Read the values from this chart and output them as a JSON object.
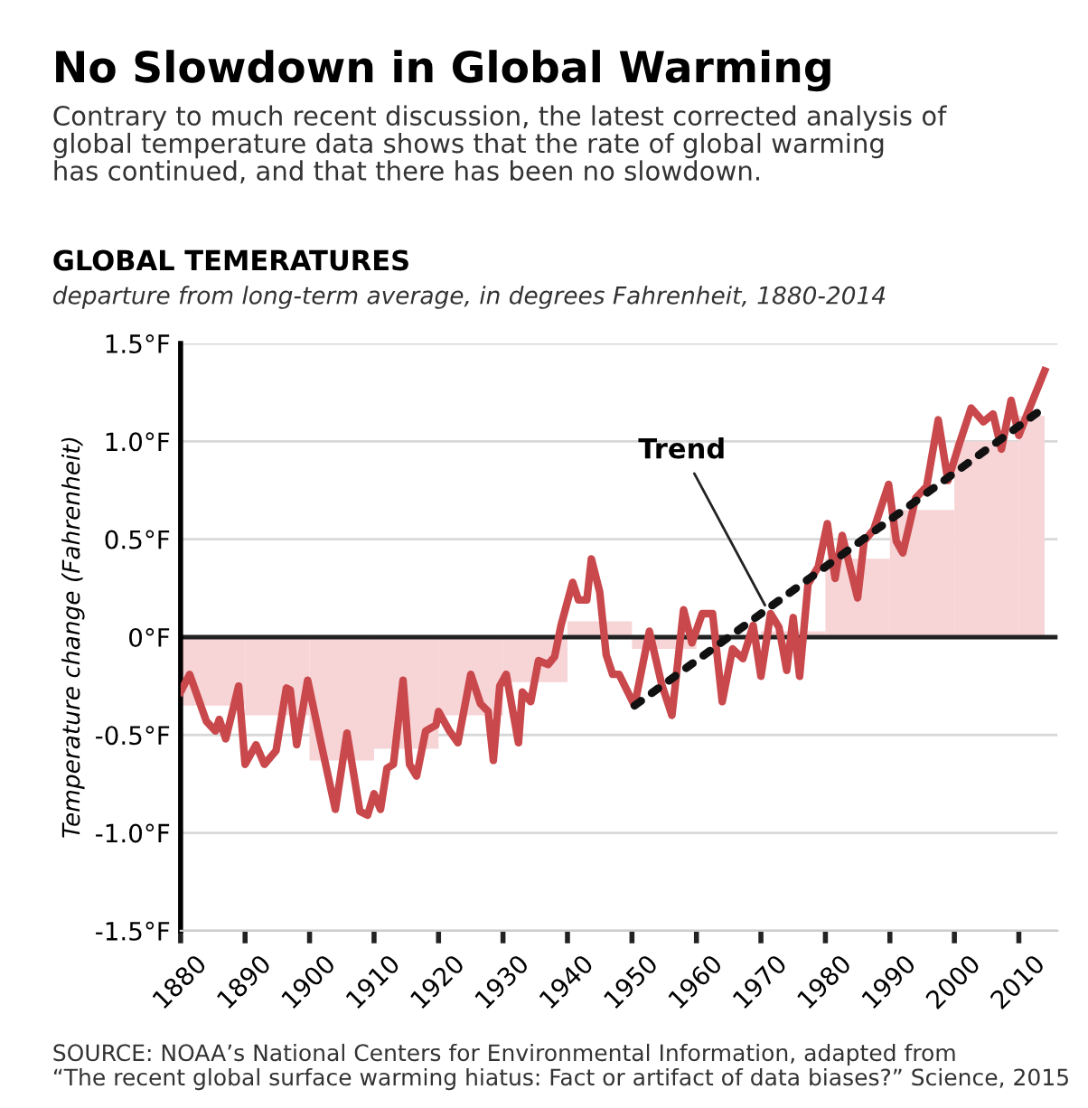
{
  "chart_data": {
    "type": "line",
    "title": "No Slowdown in Global Warming",
    "subtitle": "Contrary to much recent discussion, the latest corrected analysis of\nglobal temperature data shows that the rate of global warming\nhas continued, and that there has been no slowdown.",
    "ylabel": "Temperature change (Fahrenheit)",
    "annotations": [
      "GLOBAL TEMERATURES",
      "departure from long-term average, in degrees Fahrenheit, 1880-2014",
      "SOURCE: NOAA’s National Centers for Environmental Information, adapted from\n“The recent global surface warming hiatus: Fact or artifact of data biases?” Science, 2015",
      {
        "text": "Trend",
        "x": 1971,
        "y": 0.14
      }
    ],
    "xlim": [
      1880,
      2016
    ],
    "xticks": [
      1880,
      1890,
      1900,
      1910,
      1920,
      1930,
      1940,
      1950,
      1960,
      1970,
      1980,
      1990,
      2000,
      2010
    ],
    "ylim": [
      -1.5,
      1.5
    ],
    "yticks": [
      {
        "value": 1.5,
        "label": "1.5°F"
      },
      {
        "value": 1.0,
        "label": "1.0°F"
      },
      {
        "value": 0.5,
        "label": "0.5°F"
      },
      {
        "value": 0,
        "label": "0°F"
      },
      {
        "value": -0.5,
        "label": "-0.5°F"
      },
      {
        "value": -1.0,
        "label": "-1.0°F"
      },
      {
        "value": -1.5,
        "label": "-1.5°F"
      }
    ],
    "grid": "y",
    "legend": false,
    "ref_lines": [
      {
        "axis": "y",
        "value": 0,
        "color": "#222222"
      }
    ],
    "series": [
      {
        "type": "bar",
        "color": "#f7d4d6",
        "x": [
          1885,
          1895,
          1905,
          1915,
          1925,
          1935,
          1945,
          1955,
          1965,
          1975,
          1985,
          1995,
          2005,
          2012
        ],
        "values": [
          -0.35,
          -0.4,
          -0.63,
          -0.57,
          -0.4,
          -0.23,
          0.08,
          -0.06,
          0.0,
          0.03,
          0.4,
          0.65,
          1.0,
          1.13
        ]
      },
      {
        "color": "#c9484c",
        "line_style": "solid",
        "x": [
          1880,
          1881.4,
          1884,
          1885.4,
          1886,
          1887,
          1889,
          1890,
          1891.7,
          1893,
          1894.8,
          1896.4,
          1897,
          1898,
          1899.7,
          1901.5,
          1904,
          1905.8,
          1907.8,
          1909,
          1910,
          1911,
          1912,
          1913,
          1914.5,
          1915.5,
          1916.6,
          1918,
          1919.6,
          1920,
          1921.7,
          1923,
          1925,
          1926.5,
          1927.7,
          1928.5,
          1929.5,
          1930.5,
          1932.4,
          1933,
          1934.3,
          1935.5,
          1937,
          1938,
          1939,
          1940.8,
          1941.7,
          1943,
          1943.7,
          1945,
          1946,
          1947,
          1948,
          1950.4,
          1952.7,
          1954.6,
          1956.2,
          1958,
          1959.3,
          1960.9,
          1962.5,
          1964,
          1965.6,
          1967.2,
          1968.8,
          1970,
          1971.5,
          1972.8,
          1974,
          1975,
          1976,
          1977.3,
          1978.9,
          1980.3,
          1981.5,
          1982.6,
          1985,
          1986,
          1987.5,
          1989.8,
          1991,
          1992,
          1994,
          1995.7,
          1997.5,
          1999,
          2000.8,
          2002.6,
          2004.5,
          2006,
          2007.3,
          2008.8,
          2010,
          2011.3,
          2014
        ],
        "values": [
          -0.28,
          -0.19,
          -0.43,
          -0.48,
          -0.42,
          -0.52,
          -0.25,
          -0.65,
          -0.55,
          -0.65,
          -0.58,
          -0.26,
          -0.27,
          -0.55,
          -0.22,
          -0.5,
          -0.88,
          -0.49,
          -0.89,
          -0.91,
          -0.8,
          -0.88,
          -0.67,
          -0.65,
          -0.22,
          -0.65,
          -0.71,
          -0.48,
          -0.45,
          -0.38,
          -0.48,
          -0.54,
          -0.19,
          -0.34,
          -0.38,
          -0.63,
          -0.25,
          -0.19,
          -0.54,
          -0.28,
          -0.33,
          -0.12,
          -0.14,
          -0.1,
          0.06,
          0.28,
          0.19,
          0.19,
          0.4,
          0.23,
          -0.09,
          -0.19,
          -0.19,
          -0.35,
          0.03,
          -0.24,
          -0.4,
          0.14,
          -0.03,
          0.12,
          0.12,
          -0.33,
          -0.06,
          -0.11,
          0.06,
          -0.2,
          0.12,
          0.05,
          -0.17,
          0.1,
          -0.2,
          0.27,
          0.36,
          0.58,
          0.3,
          0.52,
          0.2,
          0.49,
          0.55,
          0.78,
          0.49,
          0.43,
          0.71,
          0.77,
          1.11,
          0.8,
          0.99,
          1.17,
          1.1,
          1.14,
          0.96,
          1.21,
          1.03,
          1.14,
          1.36
        ]
      },
      {
        "type": "line",
        "color": "#111111",
        "line_style": "dotted",
        "x": [
          1950.4,
          2013
        ],
        "values": [
          -0.35,
          1.15
        ]
      }
    ]
  }
}
